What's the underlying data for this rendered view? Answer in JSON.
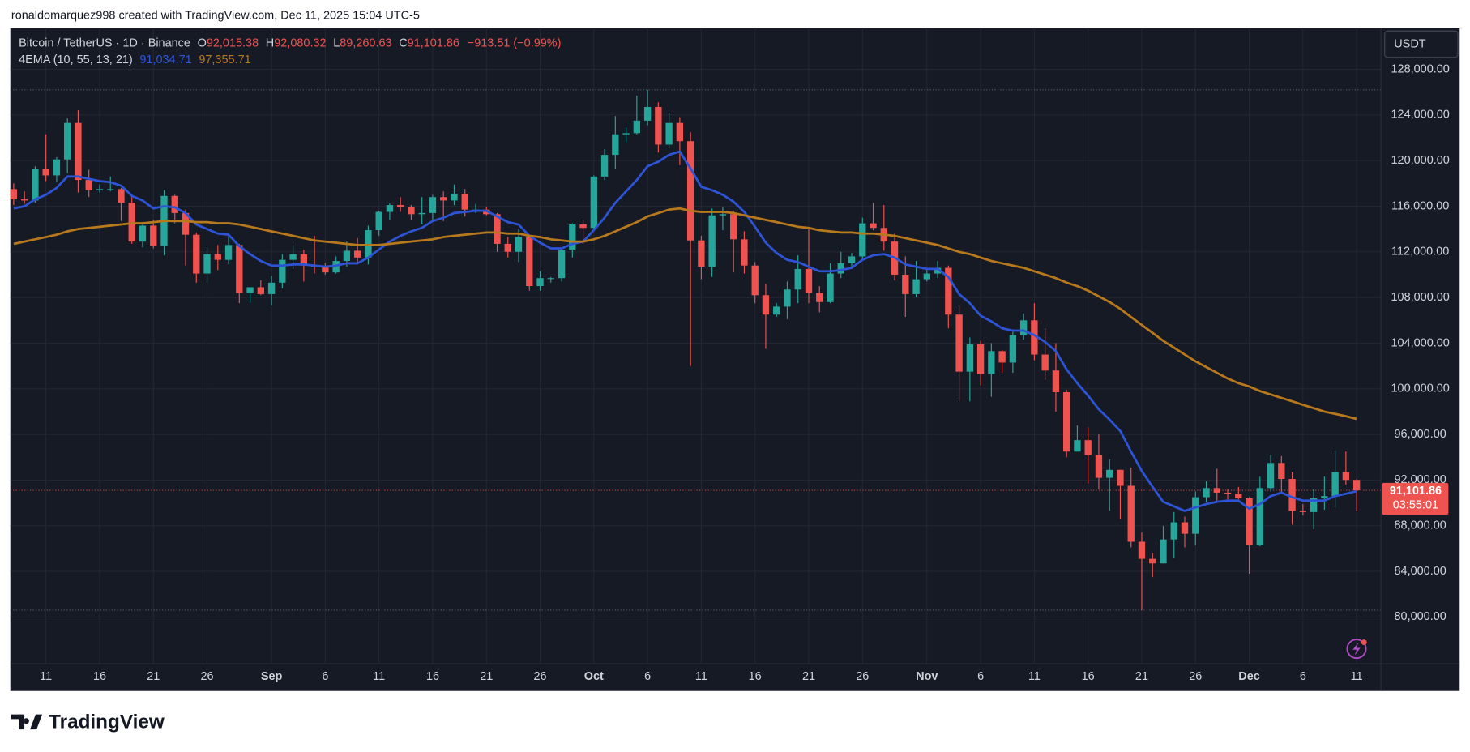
{
  "caption": "ronaldomarquez998 created with TradingView.com, Dec 11, 2025 15:04 UTC-5",
  "brand": "TradingView",
  "chart_data": {
    "type": "candlestick",
    "symbol": "Bitcoin / TetherUS · 1D · Binance",
    "ohlc_readout": [
      [
        "O",
        "92,015.38"
      ],
      [
        "H",
        "92,080.32"
      ],
      [
        "L",
        "89,260.63"
      ],
      [
        "C",
        "91,101.86"
      ]
    ],
    "change": "−913.51 (−0.99%)",
    "indicator": "4EMA (10, 55, 13, 21)",
    "currency": "USDT",
    "last_price_label": "91,101.86",
    "countdown": "03:55:01",
    "up_color": "#26a69a",
    "down_color": "#ef5350",
    "grid": true,
    "categories": [
      null,
      null,
      null,
      "11",
      null,
      null,
      null,
      null,
      "16",
      null,
      null,
      null,
      null,
      "21",
      null,
      null,
      null,
      null,
      "26",
      null,
      null,
      null,
      null,
      null,
      "Sep",
      null,
      null,
      null,
      null,
      "6",
      null,
      null,
      null,
      null,
      "11",
      null,
      null,
      null,
      null,
      "16",
      null,
      null,
      null,
      null,
      "21",
      null,
      null,
      null,
      null,
      "26",
      null,
      null,
      null,
      null,
      "Oct",
      null,
      null,
      null,
      null,
      "6",
      null,
      null,
      null,
      null,
      "11",
      null,
      null,
      null,
      null,
      "16",
      null,
      null,
      null,
      null,
      "21",
      null,
      null,
      null,
      null,
      "26",
      null,
      null,
      null,
      null,
      null,
      "Nov",
      null,
      null,
      null,
      null,
      "6",
      null,
      null,
      null,
      null,
      "11",
      null,
      null,
      null,
      null,
      "16",
      null,
      null,
      null,
      null,
      "21",
      null,
      null,
      null,
      null,
      "26",
      null,
      null,
      null,
      null,
      "Dec",
      null,
      null,
      null,
      null,
      "6",
      null,
      null,
      null,
      null,
      "11"
    ],
    "open": [
      117500,
      116600,
      116500,
      119300,
      118700,
      120100,
      123300,
      118300,
      117400,
      117500,
      117500,
      116300,
      112900,
      114300,
      112500,
      116900,
      115400,
      113500,
      110100,
      111800,
      111300,
      112600,
      108400,
      108900,
      108300,
      109300,
      111300,
      111800,
      110800,
      110700,
      110200,
      111200,
      112100,
      111500,
      113900,
      115500,
      116100,
      115900,
      115300,
      115400,
      116800,
      116500,
      117100,
      115700,
      115700,
      115300,
      112700,
      112000,
      113300,
      109000,
      109700,
      109700,
      112200,
      114400,
      114100,
      118600,
      120500,
      122300,
      122400,
      123500,
      124700,
      121400,
      123300,
      121700,
      113000,
      110700,
      115200,
      115300,
      113100,
      110800,
      108200,
      106500,
      107200,
      108700,
      110500,
      108400,
      107600,
      110100,
      111000,
      111600,
      114500,
      114100,
      112900,
      110000,
      108300,
      109600,
      110100,
      110600,
      106500,
      101500,
      103900,
      101300,
      103300,
      102300,
      104700,
      106000,
      103000,
      101600,
      99700,
      94500,
      95500,
      94200,
      92200,
      92900,
      91500,
      86600,
      85100,
      84700,
      86800,
      88300,
      87300,
      90500,
      91300,
      90900,
      90800,
      90400,
      86300,
      91300,
      93500,
      92100,
      89300,
      89200,
      90400,
      90600,
      92700,
      92015.38
    ],
    "high": [
      118000,
      117300,
      119500,
      122300,
      120300,
      123700,
      124400,
      119200,
      117900,
      118600,
      117600,
      117000,
      114600,
      114800,
      117400,
      117000,
      115700,
      113700,
      112400,
      112600,
      113500,
      112700,
      108900,
      109500,
      109900,
      111800,
      112600,
      112200,
      113400,
      111000,
      111600,
      112900,
      113200,
      114300,
      115600,
      116300,
      116800,
      116100,
      116800,
      117000,
      117300,
      117900,
      117500,
      116200,
      115900,
      115400,
      113300,
      114000,
      113500,
      110300,
      109800,
      112400,
      114500,
      114800,
      118700,
      121000,
      123900,
      122900,
      125700,
      126200,
      125100,
      124200,
      123800,
      122500,
      113400,
      115800,
      115900,
      115600,
      113800,
      111100,
      109200,
      107500,
      109400,
      111700,
      114000,
      109000,
      111000,
      112000,
      111900,
      115000,
      116300,
      116100,
      113600,
      111600,
      111200,
      110600,
      111200,
      110800,
      107300,
      104500,
      104200,
      104000,
      103400,
      105000,
      106600,
      107500,
      105300,
      104000,
      99900,
      96800,
      96600,
      96000,
      93800,
      92900,
      93100,
      87400,
      85600,
      88000,
      89200,
      88800,
      91000,
      91900,
      93000,
      91200,
      91400,
      90500,
      92300,
      94200,
      94100,
      92700,
      89900,
      91200,
      92300,
      94600,
      94500,
      92080.32
    ],
    "low": [
      116100,
      116200,
      116300,
      118200,
      118100,
      118900,
      117200,
      116800,
      117200,
      117300,
      114700,
      112700,
      112400,
      112300,
      111700,
      114500,
      110800,
      109300,
      109300,
      110400,
      110900,
      107500,
      107500,
      108200,
      107300,
      108800,
      110500,
      109400,
      110100,
      110000,
      110100,
      110700,
      110900,
      110900,
      113400,
      114800,
      115500,
      114800,
      114400,
      114800,
      114700,
      116100,
      115100,
      115400,
      115200,
      112000,
      111500,
      111100,
      108600,
      108600,
      109300,
      109400,
      111500,
      112700,
      113900,
      118300,
      119300,
      121600,
      122300,
      123100,
      120700,
      121100,
      119600,
      102000,
      109600,
      109800,
      113900,
      110200,
      110100,
      107500,
      103500,
      106300,
      106100,
      107500,
      107500,
      106700,
      107500,
      109700,
      110700,
      111200,
      113900,
      112100,
      109500,
      106300,
      108000,
      109400,
      109700,
      105300,
      98900,
      98900,
      100300,
      99300,
      101400,
      101400,
      104300,
      102500,
      100800,
      98000,
      94000,
      94500,
      91700,
      91200,
      89300,
      88600,
      86100,
      80600,
      83500,
      84700,
      85200,
      86100,
      86300,
      90100,
      90200,
      90300,
      90300,
      83800,
      86200,
      91000,
      91000,
      88100,
      88900,
      87700,
      89400,
      89600,
      91600,
      89260.63
    ],
    "close": [
      116600,
      116500,
      119300,
      118700,
      120100,
      123300,
      118300,
      117400,
      117500,
      117500,
      116300,
      112900,
      114300,
      112500,
      116900,
      115400,
      113500,
      110100,
      111800,
      111300,
      112600,
      108400,
      108900,
      108300,
      109300,
      111300,
      111800,
      110800,
      110700,
      110200,
      111200,
      112100,
      111500,
      113900,
      115500,
      116100,
      115900,
      115300,
      115400,
      116800,
      116500,
      117100,
      115700,
      115700,
      115300,
      112700,
      112000,
      113300,
      109000,
      109700,
      109700,
      112200,
      114400,
      114100,
      118600,
      120500,
      122300,
      122400,
      123500,
      124700,
      121400,
      123300,
      121700,
      113000,
      110700,
      115200,
      115300,
      113100,
      110800,
      108200,
      106500,
      107200,
      108700,
      110500,
      108400,
      107600,
      110100,
      111000,
      111600,
      114500,
      114100,
      112900,
      110000,
      108300,
      109600,
      110100,
      110600,
      106500,
      101500,
      103900,
      101300,
      103300,
      102300,
      104700,
      106000,
      103000,
      101600,
      99700,
      94500,
      95500,
      94200,
      92200,
      92900,
      91500,
      86600,
      85100,
      84700,
      86800,
      88300,
      87300,
      90500,
      91300,
      90900,
      90800,
      90400,
      86300,
      91300,
      93500,
      92100,
      89300,
      89200,
      90400,
      90600,
      92700,
      92015.38,
      91101.86
    ],
    "series": [
      {
        "color": "#2e54d6",
        "last_label": "91,034.71",
        "values": [
          115800,
          116000,
          116600,
          117000,
          117600,
          118600,
          118600,
          118400,
          118200,
          118100,
          117800,
          116900,
          116500,
          115800,
          116000,
          115900,
          115400,
          114400,
          114000,
          113600,
          113500,
          112500,
          111800,
          111200,
          110800,
          110800,
          110900,
          110900,
          110800,
          110700,
          110800,
          111000,
          111000,
          111500,
          112200,
          112900,
          113400,
          113800,
          114100,
          114700,
          115000,
          115400,
          115500,
          115600,
          115600,
          115100,
          114600,
          114400,
          113400,
          112800,
          112300,
          112300,
          112700,
          112900,
          113900,
          115000,
          116300,
          117300,
          118300,
          119500,
          119900,
          120500,
          120800,
          119300,
          117700,
          117400,
          117000,
          116400,
          115500,
          114200,
          112800,
          111900,
          111300,
          111100,
          110700,
          110300,
          110300,
          110400,
          110600,
          111300,
          111700,
          111800,
          111500,
          110900,
          110700,
          110500,
          110500,
          109800,
          108300,
          107500,
          106400,
          105900,
          105300,
          105100,
          105100,
          104700,
          104100,
          103300,
          101700,
          100500,
          99400,
          98200,
          97300,
          96300,
          94500,
          92800,
          91400,
          90100,
          89700,
          89300,
          89600,
          89900,
          90100,
          90200,
          90200,
          89500,
          89900,
          90600,
          90900,
          90500,
          90200,
          90200,
          90200,
          90600,
          90800,
          91034.71
        ]
      },
      {
        "color": "#b8791c",
        "last_label": "97,355.71",
        "values": [
          112700,
          112900,
          113100,
          113300,
          113500,
          113800,
          114000,
          114100,
          114200,
          114300,
          114400,
          114500,
          114500,
          114600,
          114700,
          114700,
          114700,
          114600,
          114600,
          114500,
          114500,
          114400,
          114200,
          114000,
          113800,
          113600,
          113400,
          113200,
          113000,
          112900,
          112800,
          112700,
          112600,
          112600,
          112600,
          112700,
          112800,
          112900,
          113000,
          113100,
          113300,
          113400,
          113500,
          113600,
          113700,
          113700,
          113600,
          113600,
          113400,
          113300,
          113100,
          113000,
          112900,
          112900,
          113100,
          113400,
          113800,
          114200,
          114600,
          115100,
          115400,
          115700,
          115800,
          115600,
          115500,
          115500,
          115500,
          115400,
          115200,
          115000,
          114800,
          114600,
          114400,
          114200,
          114100,
          113900,
          113800,
          113700,
          113700,
          113600,
          113600,
          113500,
          113400,
          113200,
          113000,
          112800,
          112600,
          112300,
          112000,
          111800,
          111500,
          111200,
          111000,
          110800,
          110600,
          110300,
          110000,
          109700,
          109300,
          109000,
          108600,
          108100,
          107600,
          107000,
          106300,
          105600,
          104900,
          104200,
          103600,
          103000,
          102400,
          101900,
          101400,
          100900,
          100500,
          100200,
          99800,
          99500,
          99200,
          98900,
          98600,
          98300,
          98000,
          97800,
          97600,
          97355.71
        ]
      }
    ],
    "ylim": [
      75900,
      131600
    ],
    "yticks": [
      {
        "value": 80000,
        "label": "80,000.00"
      },
      {
        "value": 84000,
        "label": "84,000.00"
      },
      {
        "value": 88000,
        "label": "88,000.00"
      },
      {
        "value": 92000,
        "label": "92,000.00"
      },
      {
        "value": 96000,
        "label": "96,000.00"
      },
      {
        "value": 100000,
        "label": "100,000.00"
      },
      {
        "value": 104000,
        "label": "104,000.00"
      },
      {
        "value": 108000,
        "label": "108,000.00"
      },
      {
        "value": 112000,
        "label": "112,000.00"
      },
      {
        "value": 116000,
        "label": "116,000.00"
      },
      {
        "value": 120000,
        "label": "120,000.00"
      },
      {
        "value": 124000,
        "label": "124,000.00"
      },
      {
        "value": 128000,
        "label": "128,000.00"
      }
    ]
  }
}
